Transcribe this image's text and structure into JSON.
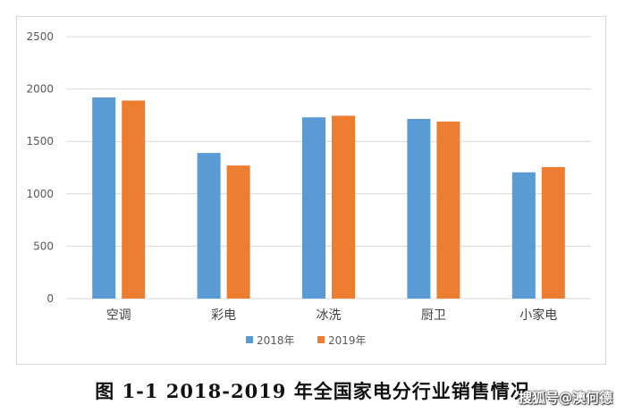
{
  "chart_data": {
    "type": "bar",
    "title": "",
    "xlabel": "",
    "ylabel": "",
    "categories": [
      "空调",
      "彩电",
      "冰洗",
      "厨卫",
      "小家电"
    ],
    "series": [
      {
        "name": "2018年",
        "color": "#5b9bd5",
        "values": [
          1920,
          1390,
          1730,
          1715,
          1205
        ]
      },
      {
        "name": "2019年",
        "color": "#ed7d31",
        "values": [
          1890,
          1270,
          1745,
          1690,
          1255
        ]
      }
    ],
    "ylim": [
      0,
      2500
    ],
    "yticks": [
      0,
      500,
      1000,
      1500,
      2000,
      2500
    ],
    "grid": true,
    "legend": "bottom"
  },
  "caption": "图 1-1 2018-2019 年全国家电分行业销售情况",
  "watermark": "搜狐号@澳何德"
}
